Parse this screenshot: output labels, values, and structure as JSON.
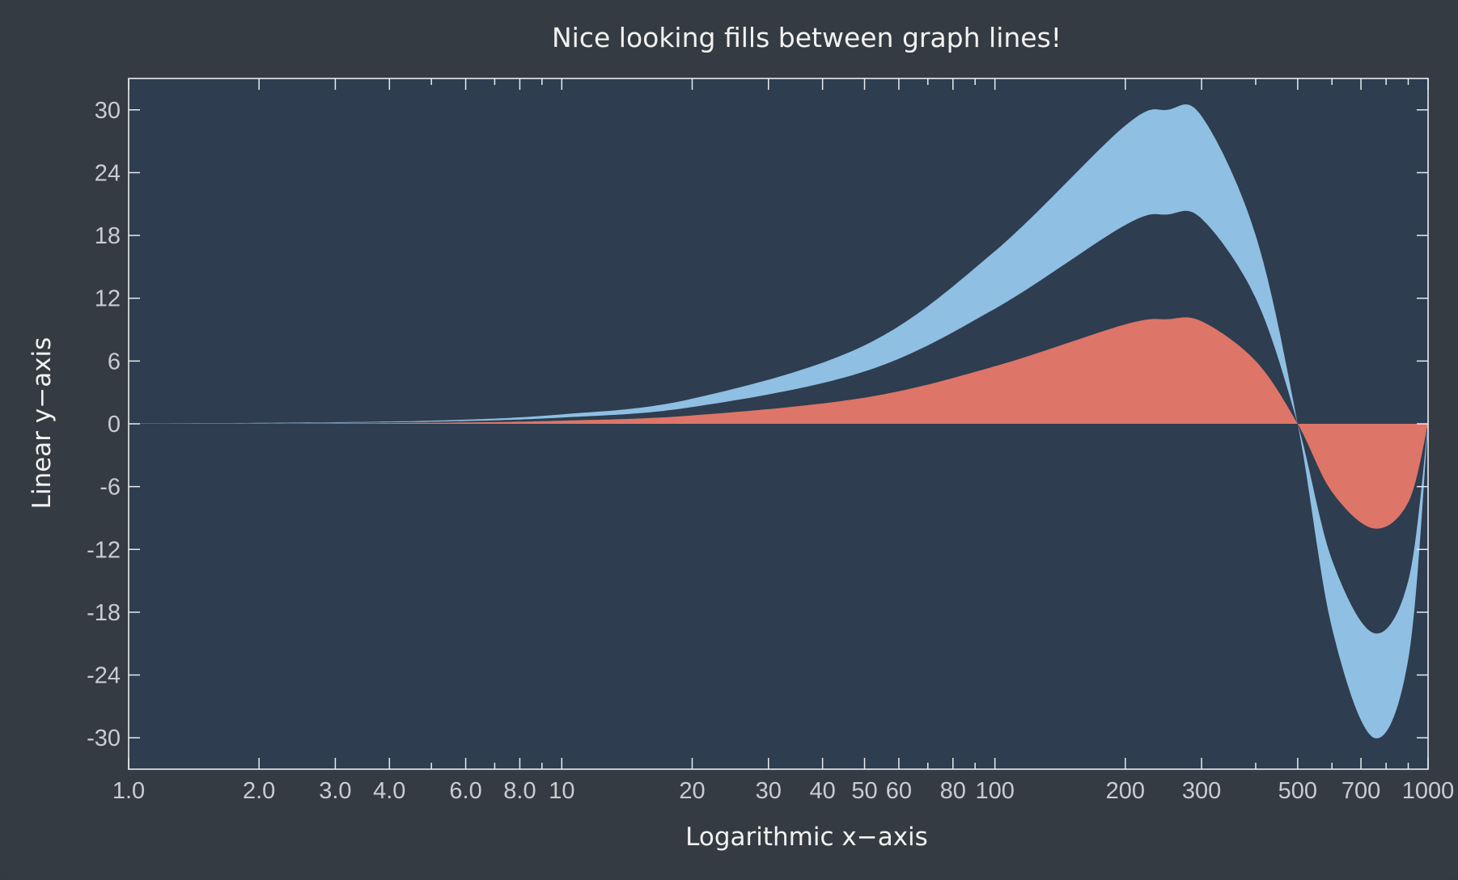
{
  "colors": {
    "background": "#353b42",
    "plot_background": "#2e3d4f",
    "band_fill": "#8fbfe3",
    "area_fill": "#dd7568",
    "frame": "#e9ecef",
    "text": "#f2f2f2",
    "tick_text": "#c9cdd1"
  },
  "chart_data": {
    "type": "area",
    "title": "Nice looking fills between graph lines!",
    "xlabel": "Logarithmic x−axis",
    "ylabel": "Linear y−axis",
    "xscale": "log",
    "xlim": [
      1,
      1000
    ],
    "ylim": [
      -33,
      33
    ],
    "grid": false,
    "legend": "none",
    "x_ticks": [
      1,
      2,
      3,
      4,
      6,
      8,
      10,
      20,
      30,
      40,
      50,
      60,
      80,
      100,
      200,
      300,
      500,
      700,
      1000
    ],
    "x_tick_labels": [
      "1.0",
      "2.0",
      "3.0",
      "4.0",
      "6.0",
      "8.0",
      "10",
      "20",
      "30",
      "40",
      "50",
      "60",
      "80",
      "100",
      "200",
      "300",
      "500",
      "700",
      "1000"
    ],
    "y_ticks": [
      30,
      24,
      18,
      12,
      6,
      0,
      -6,
      -12,
      -18,
      -24,
      -30
    ],
    "y_tick_labels": [
      "30",
      "24",
      "18",
      "12",
      "6",
      "0",
      "-6",
      "-12",
      "-18",
      "-24",
      "-30"
    ],
    "x": [
      1,
      2,
      5,
      10,
      20,
      50,
      100,
      200,
      250,
      300,
      400,
      500,
      600,
      750,
      900,
      1000
    ],
    "lines": {
      "y1": [
        0.01,
        0.03,
        0.1,
        0.3,
        0.8,
        2.5,
        5.5,
        9.5,
        10.0,
        9.8,
        6.0,
        0,
        -6.5,
        -10.0,
        -7.5,
        0
      ],
      "y2": [
        0.02,
        0.06,
        0.2,
        0.6,
        1.6,
        5.0,
        11.0,
        19.0,
        20.0,
        19.6,
        12.0,
        0,
        -13.0,
        -20.0,
        -15.0,
        0
      ],
      "y3": [
        0.03,
        0.09,
        0.3,
        0.9,
        2.4,
        7.5,
        16.5,
        28.5,
        30.0,
        29.4,
        18.0,
        0,
        -19.5,
        -30.0,
        -22.5,
        0
      ]
    },
    "fills": [
      {
        "between": [
          "y2",
          "y3"
        ],
        "color": "#8fbfe3"
      },
      {
        "between": [
          "zero",
          "y1"
        ],
        "color": "#dd7568"
      }
    ]
  }
}
